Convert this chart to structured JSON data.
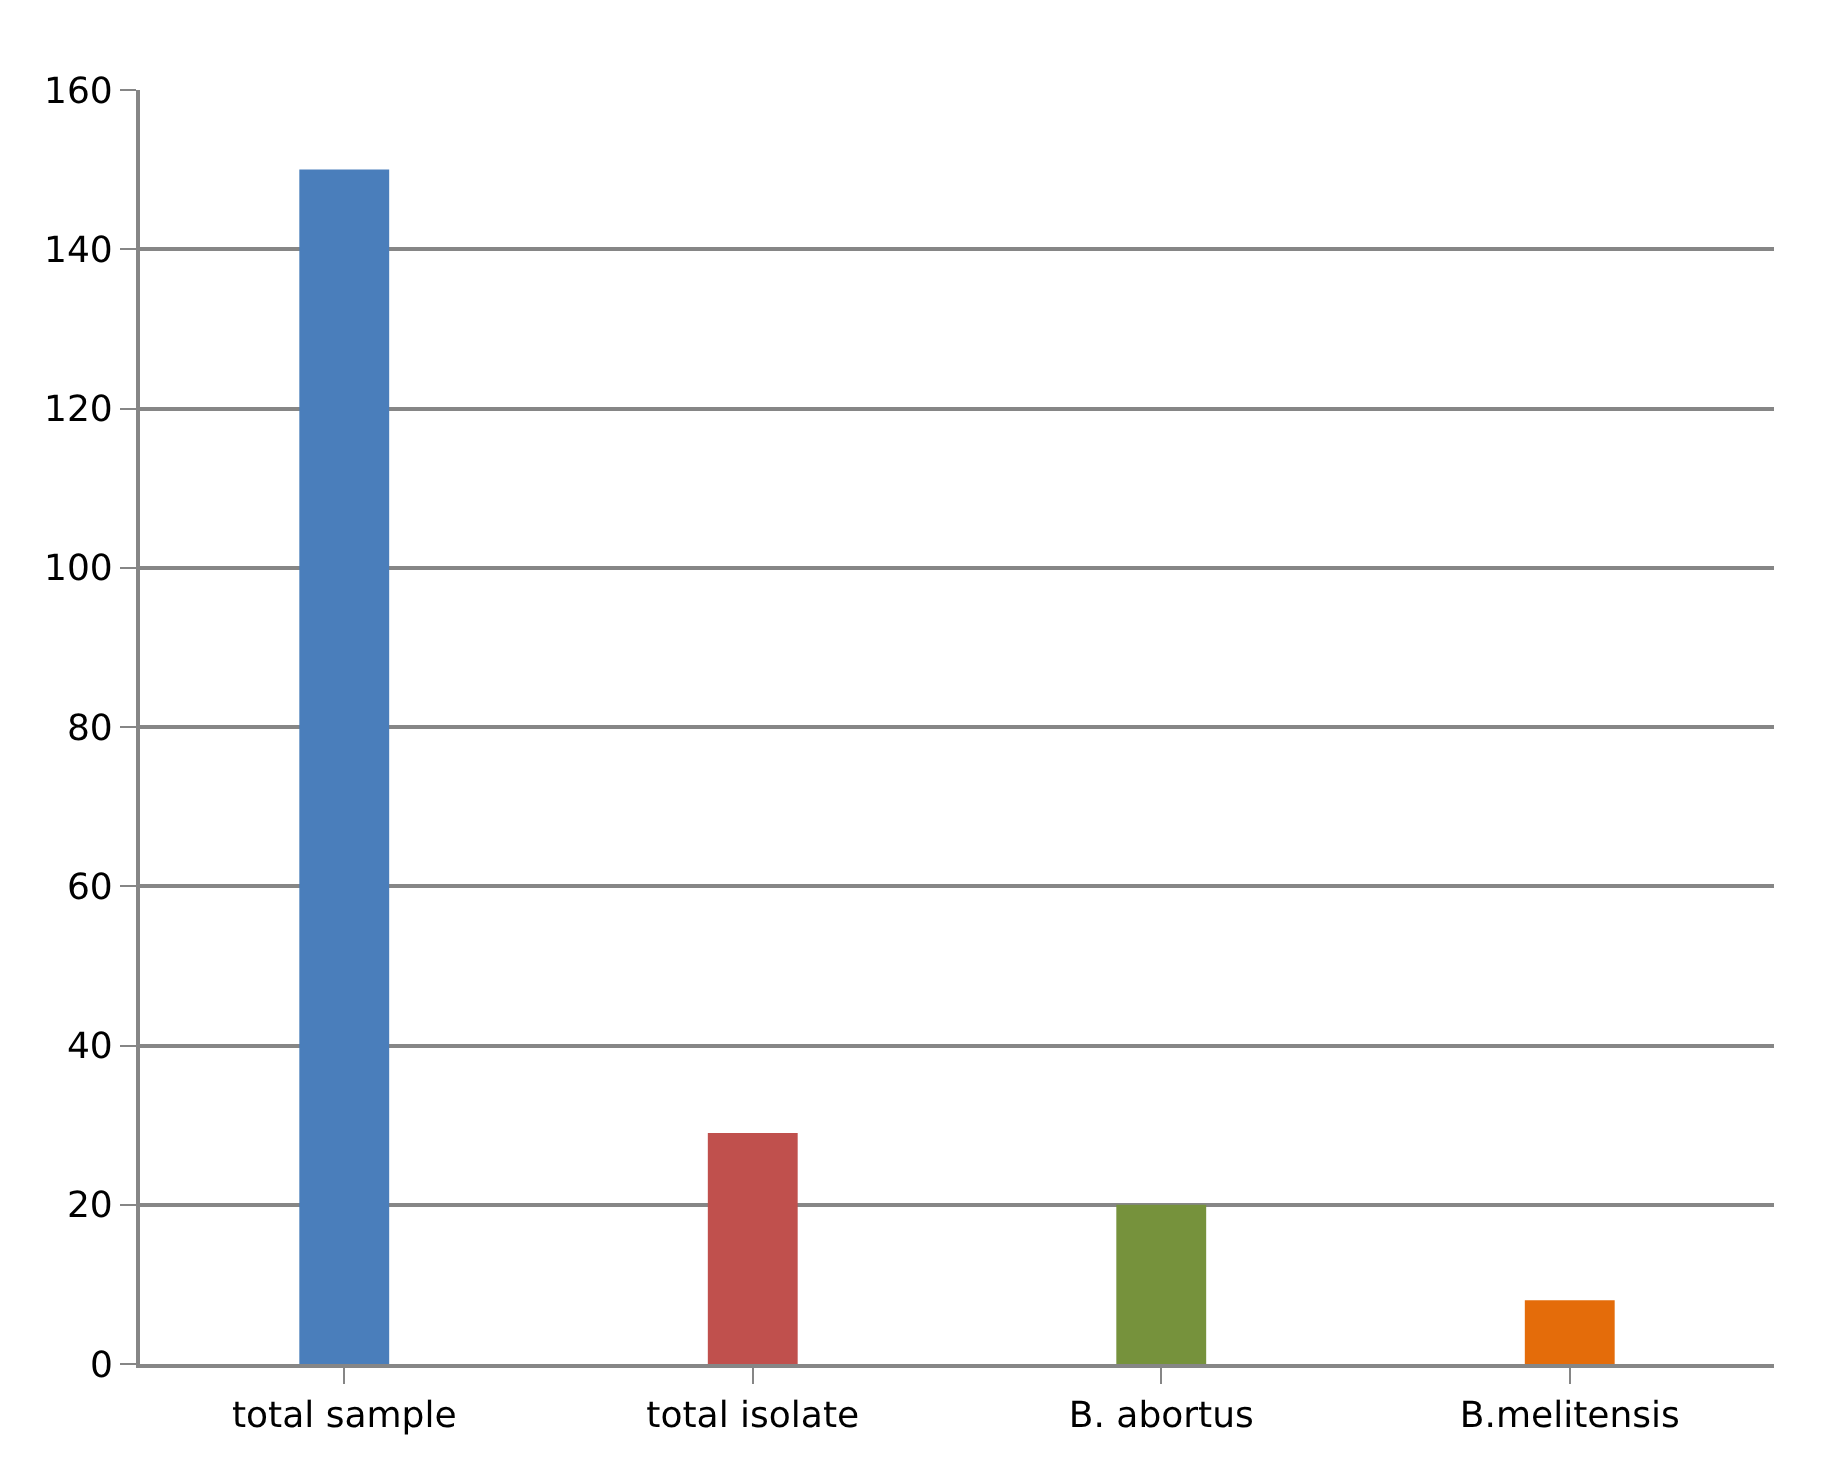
{
  "chart_data": {
    "type": "bar",
    "categories": [
      "total sample",
      "total isolate",
      "B. abortus",
      "B.melitensis"
    ],
    "values": [
      150,
      29,
      20,
      8
    ],
    "colors": [
      "#4a7ebb",
      "#c0504d",
      "#76923c",
      "#e46c0a"
    ],
    "ylim": [
      0,
      160
    ],
    "yticks": [
      0,
      20,
      40,
      60,
      80,
      100,
      120,
      140,
      160
    ],
    "grid": "y"
  }
}
